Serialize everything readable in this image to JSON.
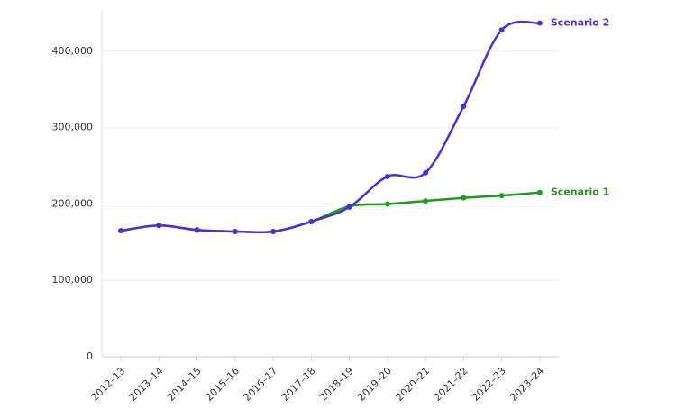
{
  "chart_data": {
    "type": "line",
    "categories": [
      "2012–13",
      "2013–14",
      "2014–15",
      "2015–16",
      "2016–17",
      "2017–18",
      "2018–19",
      "2019–20",
      "2020–21",
      "2021–22",
      "2022–23",
      "2023–24"
    ],
    "series": [
      {
        "name": "Scenario 1",
        "color": "#1f9a1f",
        "values": [
          165000,
          172000,
          166000,
          164000,
          164000,
          177000,
          197000,
          200000,
          204000,
          208000,
          211000,
          215000
        ]
      },
      {
        "name": "Scenario 2",
        "color": "#4a2fd6",
        "values": [
          165000,
          172000,
          166000,
          164000,
          164000,
          177000,
          196000,
          236000,
          241000,
          328000,
          428000,
          437000
        ]
      }
    ],
    "ylim": [
      0,
      453000
    ],
    "yticks": [
      0,
      {
        "value": 100000,
        "label": "100,000"
      },
      {
        "value": 200000,
        "label": "200,000"
      },
      {
        "value": 300000,
        "label": "300,000"
      },
      {
        "value": 400000,
        "label": "400,000"
      }
    ],
    "grid": true
  }
}
